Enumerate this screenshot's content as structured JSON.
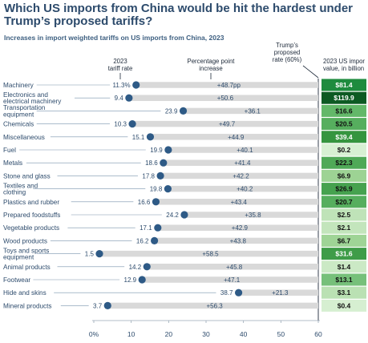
{
  "title": "Which US imports from China would be hit the hardest under Trump’s proposed tariffs?",
  "subtitle": "Increases in import weighted tariffs on US imports from China, 2023",
  "chart_data": {
    "type": "bar",
    "title": "Which US imports from China would be hit the hardest under Trump’s proposed tariffs?",
    "subtitle": "Increases in import weighted tariffs on US imports from China, 2023",
    "header_tariff_rate": [
      "2023",
      "tariff rate"
    ],
    "header_increase": [
      "Percentage point",
      "increase"
    ],
    "header_proposed": [
      "Trump’s",
      "proposed",
      "rate (60%)"
    ],
    "header_value": [
      "2023 US impor",
      "value, in billion"
    ],
    "proposed_rate": 60,
    "xlim": [
      0,
      60
    ],
    "x_ticks": [
      0,
      10,
      20,
      30,
      40,
      50,
      60
    ],
    "x_tick_labels": [
      "0%",
      "10",
      "20",
      "30",
      "40",
      "50",
      "60"
    ],
    "grid": false,
    "rows": [
      {
        "category": [
          "Machinery"
        ],
        "tariff_rate": 11.3,
        "tariff_label": "11.3%",
        "increase": 48.7,
        "increase_label": "+48.7pp",
        "import_value": 81.4,
        "value_label": "$81.4",
        "bg": "#1e8b3e",
        "fg": "#ffffff"
      },
      {
        "category": [
          "Electronics and",
          "electrical machinery"
        ],
        "tariff_rate": 9.4,
        "tariff_label": "9.4",
        "increase": 50.6,
        "increase_label": "+50.6",
        "import_value": 119.9,
        "value_label": "$119.9",
        "bg": "#0d5a23",
        "fg": "#ffffff"
      },
      {
        "category": [
          "Transportation",
          "equipment"
        ],
        "tariff_rate": 23.9,
        "tariff_label": "23.9",
        "increase": 36.1,
        "increase_label": "+36.1",
        "import_value": 16.6,
        "value_label": "$16.6",
        "bg": "#63b869",
        "fg": "#111111"
      },
      {
        "category": [
          "Chemicals"
        ],
        "tariff_rate": 10.3,
        "tariff_label": "10.3",
        "increase": 49.7,
        "increase_label": "+49.7",
        "import_value": 20.5,
        "value_label": "$20.5",
        "bg": "#56ae5e",
        "fg": "#111111"
      },
      {
        "category": [
          "Miscellaneous"
        ],
        "tariff_rate": 15.1,
        "tariff_label": "15.1",
        "increase": 44.9,
        "increase_label": "+44.9",
        "import_value": 39.4,
        "value_label": "$39.4",
        "bg": "#35953f",
        "fg": "#ffffff"
      },
      {
        "category": [
          "Fuel"
        ],
        "tariff_rate": 19.9,
        "tariff_label": "19.9",
        "increase": 40.1,
        "increase_label": "+40.1",
        "import_value": 0.2,
        "value_label": "$0.2",
        "bg": "#d7f0d3",
        "fg": "#111111"
      },
      {
        "category": [
          "Metals"
        ],
        "tariff_rate": 18.6,
        "tariff_label": "18.6",
        "increase": 41.4,
        "increase_label": "+41.4",
        "import_value": 22.3,
        "value_label": "$22.3",
        "bg": "#4fa957",
        "fg": "#111111"
      },
      {
        "category": [
          "Stone and glass"
        ],
        "tariff_rate": 17.8,
        "tariff_label": "17.8",
        "increase": 42.2,
        "increase_label": "+42.2",
        "import_value": 6.9,
        "value_label": "$6.9",
        "bg": "#9dd394",
        "fg": "#111111"
      },
      {
        "category": [
          "Textiles and",
          "clothing"
        ],
        "tariff_rate": 19.8,
        "tariff_label": "19.8",
        "increase": 40.2,
        "increase_label": "+40.2",
        "import_value": 26.9,
        "value_label": "$26.9",
        "bg": "#46a24f",
        "fg": "#111111"
      },
      {
        "category": [
          "Plastics and rubber"
        ],
        "tariff_rate": 16.6,
        "tariff_label": "16.6",
        "increase": 43.4,
        "increase_label": "+43.4",
        "import_value": 20.7,
        "value_label": "$20.7",
        "bg": "#56ae5e",
        "fg": "#111111"
      },
      {
        "category": [
          "Prepared foodstuffs"
        ],
        "tariff_rate": 24.2,
        "tariff_label": "24.2",
        "increase": 35.8,
        "increase_label": "+35.8",
        "import_value": 2.5,
        "value_label": "$2.5",
        "bg": "#bfe3b8",
        "fg": "#111111"
      },
      {
        "category": [
          "Vegetable products"
        ],
        "tariff_rate": 17.1,
        "tariff_label": "17.1",
        "increase": 42.9,
        "increase_label": "+42.9",
        "import_value": 2.1,
        "value_label": "$2.1",
        "bg": "#c3e5bc",
        "fg": "#111111"
      },
      {
        "category": [
          "Wood products"
        ],
        "tariff_rate": 16.2,
        "tariff_label": "16.2",
        "increase": 43.8,
        "increase_label": "+43.8",
        "import_value": 6.7,
        "value_label": "$6.7",
        "bg": "#9fd496",
        "fg": "#111111"
      },
      {
        "category": [
          "Toys and sports",
          "equipment"
        ],
        "tariff_rate": 1.5,
        "tariff_label": "1.5",
        "increase": 58.5,
        "increase_label": "+58.5",
        "import_value": 31.6,
        "value_label": "$31.6",
        "bg": "#3f9c48",
        "fg": "#ffffff"
      },
      {
        "category": [
          "Animal products"
        ],
        "tariff_rate": 14.2,
        "tariff_label": "14.2",
        "increase": 45.8,
        "increase_label": "+45.8",
        "import_value": 1.4,
        "value_label": "$1.4",
        "bg": "#cbe9c5",
        "fg": "#111111"
      },
      {
        "category": [
          "Footwear"
        ],
        "tariff_rate": 12.9,
        "tariff_label": "12.9",
        "increase": 47.1,
        "increase_label": "+47.1",
        "import_value": 13.1,
        "value_label": "$13.1",
        "bg": "#76c07a",
        "fg": "#111111"
      },
      {
        "category": [
          "Hide and skins"
        ],
        "tariff_rate": 38.7,
        "tariff_label": "38.7",
        "increase": 21.3,
        "increase_label": "+21.3",
        "import_value": 3.1,
        "value_label": "$3.1",
        "bg": "#bae1b3",
        "fg": "#111111"
      },
      {
        "category": [
          "Mineral products"
        ],
        "tariff_rate": 3.7,
        "tariff_label": "3.7",
        "increase": 56.3,
        "increase_label": "+56.3",
        "import_value": 0.4,
        "value_label": "$0.4",
        "bg": "#d6efd1",
        "fg": "#111111"
      }
    ]
  },
  "colors": {
    "title": "#2d4b6c",
    "bar": "#d9d9d9",
    "dot": "#2e5a86",
    "leader": "#7a93ad",
    "text": "#2d4b6c"
  }
}
